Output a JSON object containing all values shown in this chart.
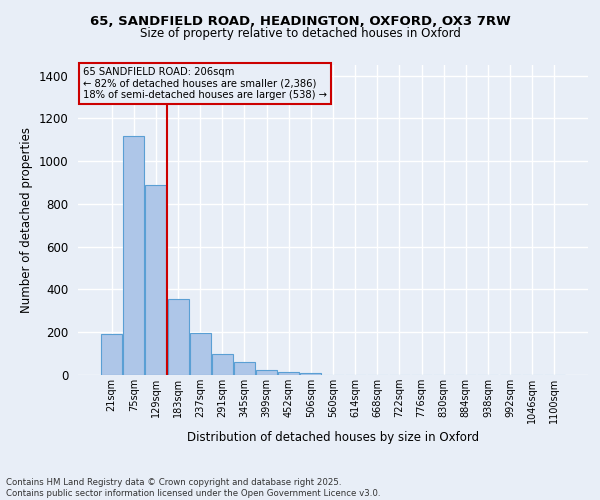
{
  "title_line1": "65, SANDFIELD ROAD, HEADINGTON, OXFORD, OX3 7RW",
  "title_line2": "Size of property relative to detached houses in Oxford",
  "xlabel": "Distribution of detached houses by size in Oxford",
  "ylabel": "Number of detached properties",
  "bar_labels": [
    "21sqm",
    "75sqm",
    "129sqm",
    "183sqm",
    "237sqm",
    "291sqm",
    "345sqm",
    "399sqm",
    "452sqm",
    "506sqm",
    "560sqm",
    "614sqm",
    "668sqm",
    "722sqm",
    "776sqm",
    "830sqm",
    "884sqm",
    "938sqm",
    "992sqm",
    "1046sqm",
    "1100sqm"
  ],
  "bar_values": [
    190,
    1120,
    890,
    355,
    195,
    100,
    62,
    22,
    15,
    10,
    0,
    0,
    0,
    0,
    0,
    0,
    0,
    0,
    0,
    0,
    0
  ],
  "bar_color": "#aec6e8",
  "bar_edge_color": "#5a9fd4",
  "annotation_title": "65 SANDFIELD ROAD: 206sqm",
  "annotation_line1": "← 82% of detached houses are smaller (2,386)",
  "annotation_line2": "18% of semi-detached houses are larger (538) →",
  "vline_color": "#cc0000",
  "annotation_box_color": "#cc0000",
  "ylim": [
    0,
    1450
  ],
  "yticks": [
    0,
    200,
    400,
    600,
    800,
    1000,
    1200,
    1400
  ],
  "footer_line1": "Contains HM Land Registry data © Crown copyright and database right 2025.",
  "footer_line2": "Contains public sector information licensed under the Open Government Licence v3.0.",
  "background_color": "#e8eef7",
  "grid_color": "#ffffff"
}
